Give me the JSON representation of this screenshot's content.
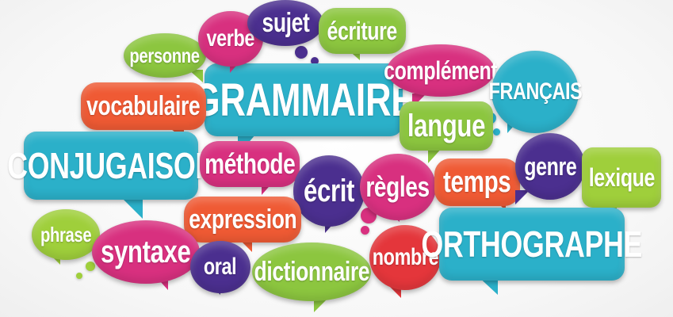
{
  "colors": {
    "green": "#8cc63f",
    "magenta": "#d8307f",
    "purple": "#4b2f8f",
    "cyan": "#2bb0c9",
    "orange_red": "#ef5a34",
    "red": "#e4363b",
    "light_green": "#9fcf3b"
  },
  "words": {
    "sujet": "sujet",
    "ecriture": "écriture",
    "verbe": "verbe",
    "personne": "personne",
    "complement": "complément",
    "francais": "FRANÇAIS",
    "grammaire": "GRAMMAIRE",
    "vocabulaire": "vocabulaire",
    "langue": "langue",
    "conjugaison": "CONJUGAISON",
    "methode": "méthode",
    "ecrit": "écrit",
    "regles": "règles",
    "temps": "temps",
    "genre": "genre",
    "lexique": "lexique",
    "expression": "expression",
    "phrase": "phrase",
    "syntaxe": "syntaxe",
    "oral": "oral",
    "dictionnaire": "dictionnaire",
    "nombre": "nombre",
    "orthographe": "ORTHOGRAPHE"
  }
}
